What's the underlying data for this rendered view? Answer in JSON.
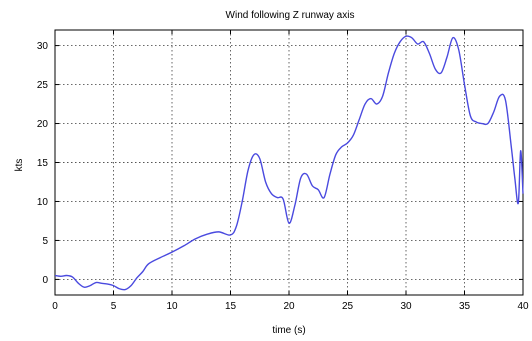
{
  "chart_data": {
    "type": "line",
    "title": "Wind following Z runway axis",
    "xlabel": "time (s)",
    "ylabel": "kts",
    "xlim": [
      0,
      40
    ],
    "ylim": [
      -2,
      32
    ],
    "grid": true,
    "xticks": [
      "0",
      "5",
      "10",
      "15",
      "20",
      "25",
      "30",
      "35",
      "40"
    ],
    "yticks": [
      "0",
      "5",
      "10",
      "15",
      "20",
      "25",
      "30"
    ],
    "series": [
      {
        "color": "#4a4adf",
        "x": [
          0,
          0.5,
          1,
          1.5,
          2,
          2.5,
          3,
          3.5,
          4,
          4.5,
          5,
          5.5,
          6,
          6.5,
          7,
          7.5,
          8,
          9,
          10,
          11,
          12,
          13,
          14,
          15,
          15.5,
          16,
          16.5,
          17,
          17.5,
          18,
          18.5,
          19,
          19.5,
          20,
          20.5,
          21,
          21.5,
          22,
          22.5,
          23,
          23.5,
          24,
          24.5,
          25,
          25.5,
          26,
          26.5,
          27,
          27.5,
          28,
          28.5,
          29,
          29.5,
          30,
          30.5,
          31,
          31.5,
          32,
          32.5,
          33,
          33.5,
          34,
          34.5,
          35,
          35.5,
          36,
          36.5,
          37,
          37.5,
          38,
          38.5,
          39,
          39.3,
          39.6,
          39.8,
          40
        ],
        "y": [
          0.5,
          0.4,
          0.5,
          0.3,
          -0.5,
          -1.0,
          -0.8,
          -0.4,
          -0.5,
          -0.6,
          -0.8,
          -1.2,
          -1.3,
          -0.8,
          0.2,
          1.0,
          2.0,
          2.8,
          3.5,
          4.3,
          5.2,
          5.8,
          6.1,
          5.7,
          6.8,
          10.0,
          14.0,
          16.0,
          15.5,
          12.5,
          11.0,
          10.5,
          10.3,
          7.2,
          9.5,
          13.0,
          13.5,
          12.0,
          11.5,
          10.5,
          13.5,
          16.0,
          17.0,
          17.5,
          18.5,
          20.5,
          22.5,
          23.2,
          22.5,
          23.5,
          26.5,
          29.0,
          30.5,
          31.2,
          31.0,
          30.2,
          30.5,
          29.0,
          27.0,
          26.5,
          28.5,
          31.0,
          29.5,
          25.0,
          21.0,
          20.2,
          20.0,
          20.0,
          21.5,
          23.5,
          23.0,
          17.0,
          13.0,
          9.8,
          16.5,
          11.0
        ]
      }
    ]
  }
}
